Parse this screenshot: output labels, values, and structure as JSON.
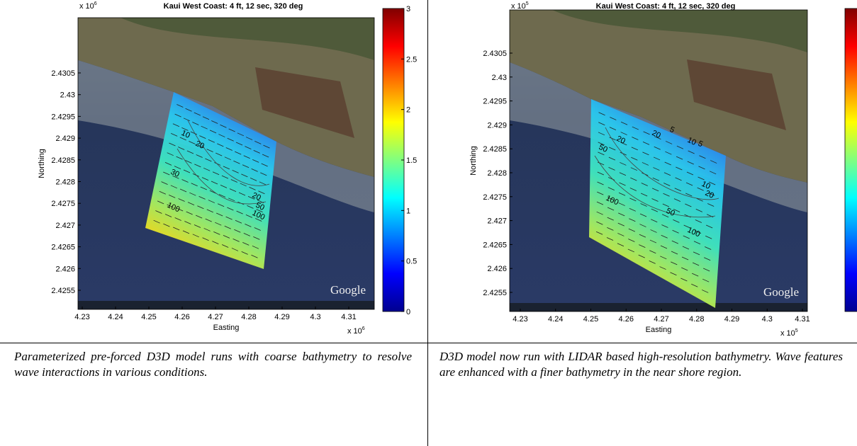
{
  "figures": [
    {
      "title": "Kaui West Coast: 4 ft, 12 sec, 320 deg",
      "xlabel": "Easting",
      "ylabel": "Northing",
      "xticks": [
        4.23,
        4.24,
        4.25,
        4.26,
        4.27,
        4.28,
        4.29,
        4.3,
        4.31
      ],
      "yticks": [
        2.4255,
        2.426,
        2.4265,
        2.427,
        2.4275,
        2.428,
        2.4285,
        2.429,
        2.4295,
        2.43,
        2.4305
      ],
      "multiplier": {
        "base": "x 10",
        "exponent": "6"
      },
      "colorbar_ticks": [
        0,
        0.5,
        1,
        1.5,
        2,
        2.5,
        3
      ],
      "contour_labels": [
        "20",
        "10",
        "30",
        "100",
        "20",
        "50",
        "100"
      ],
      "watermark": "Google",
      "caption": "Parameterized pre-forced D3D model runs with coarse bathymetry to resolve wave interactions in various conditions."
    },
    {
      "title": "Kaui West Coast: 4 ft, 12 sec, 320 deg",
      "xlabel": "Easting",
      "ylabel": "Northing",
      "xticks": [
        4.23,
        4.24,
        4.25,
        4.26,
        4.27,
        4.28,
        4.29,
        4.3,
        4.31
      ],
      "yticks": [
        2.4255,
        2.426,
        2.4265,
        2.427,
        2.4275,
        2.428,
        2.4285,
        2.429,
        2.4295,
        2.43,
        2.4305
      ],
      "multiplier": {
        "base": "x 10",
        "exponent": "5"
      },
      "contour_labels": [
        "50",
        "20",
        "100",
        "20",
        "5",
        "10",
        "5",
        "10",
        "20",
        "50",
        "100"
      ],
      "watermark": "Google",
      "caption": "D3D model now run with LIDAR based high-resolution bathymetry. Wave features are enhanced with a finer bathymetry in the near shore region."
    }
  ]
}
